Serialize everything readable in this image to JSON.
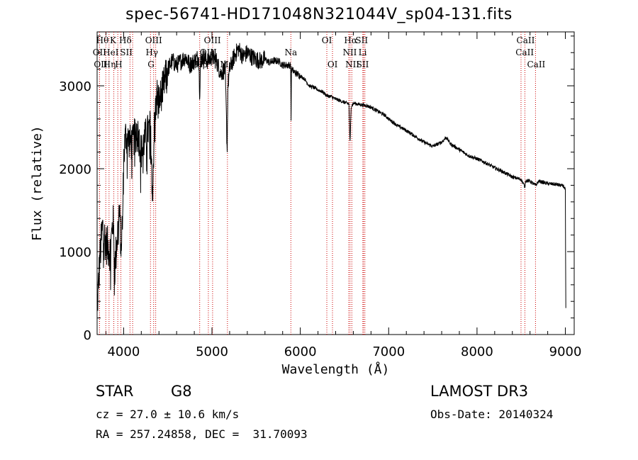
{
  "chart_data": {
    "type": "line",
    "title": "spec-56741-HD171048N321044V_sp04-131.fits",
    "xlabel": "Wavelength (Å)",
    "ylabel": "Flux (relative)",
    "xlim": [
      3700,
      9100
    ],
    "ylim": [
      0,
      3650
    ],
    "xticks": [
      4000,
      5000,
      6000,
      7000,
      8000,
      9000
    ],
    "yticks": [
      0,
      1000,
      2000,
      3000
    ],
    "anchors": {
      "x": [
        3700,
        3730,
        3760,
        3800,
        3850,
        3880,
        3900,
        3930,
        3950,
        3970,
        3990,
        4000,
        4020,
        4050,
        4100,
        4150,
        4200,
        4250,
        4300,
        4330,
        4340,
        4350,
        4380,
        4400,
        4450,
        4500,
        4550,
        4600,
        4650,
        4700,
        4750,
        4800,
        4850,
        4861,
        4870,
        4900,
        4950,
        5000,
        5050,
        5100,
        5150,
        5172,
        5180,
        5200,
        5250,
        5300,
        5350,
        5400,
        5450,
        5500,
        5550,
        5600,
        5650,
        5700,
        5750,
        5800,
        5850,
        5890,
        5895,
        5900,
        5950,
        6000,
        6050,
        6100,
        6150,
        6200,
        6250,
        6300,
        6350,
        6400,
        6450,
        6500,
        6550,
        6563,
        6575,
        6600,
        6650,
        6700,
        6750,
        6800,
        6850,
        6900,
        6950,
        7000,
        7100,
        7200,
        7300,
        7400,
        7500,
        7600,
        7650,
        7700,
        7800,
        7900,
        8000,
        8100,
        8200,
        8300,
        8400,
        8500,
        8542,
        8550,
        8600,
        8662,
        8700,
        8800,
        8900,
        8980,
        9000,
        9005
      ],
      "y": [
        300,
        900,
        1300,
        1100,
        1000,
        1400,
        800,
        1200,
        1500,
        1100,
        1400,
        2100,
        2400,
        2350,
        2300,
        2500,
        2200,
        2400,
        2500,
        1800,
        2200,
        2600,
        2900,
        2800,
        3000,
        3200,
        3300,
        3250,
        3300,
        3350,
        3250,
        3300,
        3350,
        2900,
        3300,
        3350,
        3300,
        3350,
        3300,
        3150,
        3200,
        2200,
        3000,
        3200,
        3350,
        3450,
        3350,
        3400,
        3350,
        3320,
        3300,
        3320,
        3280,
        3300,
        3300,
        3250,
        3250,
        3250,
        2600,
        3200,
        3150,
        3120,
        3080,
        3000,
        2980,
        2950,
        2930,
        2880,
        2870,
        2840,
        2820,
        2800,
        2780,
        2300,
        2750,
        2790,
        2780,
        2770,
        2760,
        2740,
        2710,
        2680,
        2650,
        2600,
        2520,
        2460,
        2390,
        2320,
        2270,
        2320,
        2380,
        2300,
        2230,
        2160,
        2120,
        2070,
        2010,
        1960,
        1900,
        1870,
        1780,
        1860,
        1850,
        1800,
        1850,
        1820,
        1810,
        1790,
        1750,
        300
      ]
    },
    "lines": [
      {
        "name": "OII",
        "wl": 3727,
        "row": 2,
        "label_x": 3727
      },
      {
        "name": "Hθ",
        "wl": 3798,
        "row": 1,
        "label_x": 3760
      },
      {
        "name": "OII",
        "wl": 3727,
        "row": 3,
        "label_x": 3740
      },
      {
        "name": "Hη",
        "wl": 3835,
        "row": 3,
        "label_x": 3840
      },
      {
        "name": "K",
        "wl": 3934,
        "row": 1,
        "label_x": 3880
      },
      {
        "name": "HeI",
        "wl": 3889,
        "row": 2,
        "label_x": 3855
      },
      {
        "name": "H",
        "wl": 3969,
        "row": 3,
        "label_x": 3945
      },
      {
        "name": "Hδ",
        "wl": 4102,
        "row": 1,
        "label_x": 4020
      },
      {
        "name": "SII",
        "wl": 4072,
        "row": 2,
        "label_x": 4030
      },
      {
        "name": "OIII",
        "wl": 4363,
        "row": 1,
        "label_x": 4340
      },
      {
        "name": "Hγ",
        "wl": 4340,
        "row": 2,
        "label_x": 4320
      },
      {
        "name": "G",
        "wl": 4304,
        "row": 3,
        "label_x": 4310
      },
      {
        "name": "Hβ",
        "wl": 4861,
        "row": 3,
        "label_x": 4880
      },
      {
        "name": "OIII",
        "wl": 4959,
        "row": 2,
        "label_x": 4958
      },
      {
        "name": "OIII",
        "wl": 5007,
        "row": 1,
        "label_x": 5005
      },
      {
        "name": "Mg",
        "wl": 5175,
        "row": 3,
        "label_x": 5170
      },
      {
        "name": "Na",
        "wl": 5893,
        "row": 2,
        "label_x": 5893
      },
      {
        "name": "OI",
        "wl": 6300,
        "row": 1,
        "label_x": 6300
      },
      {
        "name": "OI",
        "wl": 6364,
        "row": 3,
        "label_x": 6365
      },
      {
        "name": "Hα",
        "wl": 6563,
        "row": 1,
        "label_x": 6570
      },
      {
        "name": "NII",
        "wl": 6548,
        "row": 2,
        "label_x": 6560
      },
      {
        "name": "NII",
        "wl": 6583,
        "row": 3,
        "label_x": 6590
      },
      {
        "name": "SII",
        "wl": 6716,
        "row": 1,
        "label_x": 6695
      },
      {
        "name": "Li",
        "wl": 6708,
        "row": 2,
        "label_x": 6705
      },
      {
        "name": "SII",
        "wl": 6731,
        "row": 3,
        "label_x": 6705
      },
      {
        "name": "CaII",
        "wl": 8662,
        "row": 1,
        "label_x": 8550
      },
      {
        "name": "CaII",
        "wl": 8542,
        "row": 2,
        "label_x": 8540
      },
      {
        "name": "CaII",
        "wl": 8498,
        "row": 3,
        "label_x": 8670
      }
    ]
  },
  "info": {
    "class_label": "STAR",
    "subclass": "G8",
    "cz_text": "cz = 27.0 ± 10.6 km/s",
    "radec_text": "RA = 257.24858, DEC =  31.70093",
    "survey": "LAMOST DR3",
    "obsdate_text": "Obs-Date: 20140324"
  },
  "colors": {
    "line": "#000000",
    "marker": "#cc0000"
  }
}
